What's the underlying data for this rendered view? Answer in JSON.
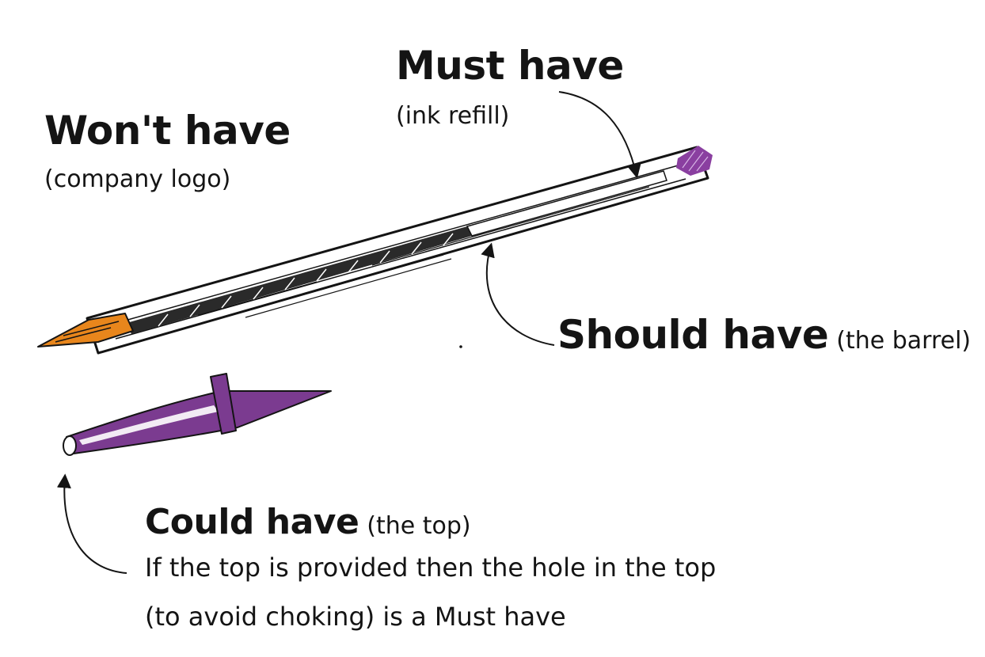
{
  "labels": {
    "must": {
      "heading": "Must have",
      "sub": "(ink refill)"
    },
    "wont": {
      "heading": "Won't have",
      "sub": "(company logo)"
    },
    "should": {
      "heading": "Should have",
      "sub": "(the barrel)"
    },
    "could": {
      "heading": "Could have",
      "sub": "(the top)",
      "note_line1": "If the top is provided then the hole in the top",
      "note_line2": "(to avoid choking) is a Must have"
    }
  },
  "colors": {
    "ink": "#141414",
    "cap_purple": "#7b3b90",
    "plug_purple": "#8a3fa0",
    "tip_orange": "#e8861c"
  },
  "icons": [
    "pen-barrel-icon",
    "pen-tip-icon",
    "ink-refill-icon",
    "pen-end-plug-icon",
    "pen-cap-icon",
    "arrow-icon"
  ]
}
